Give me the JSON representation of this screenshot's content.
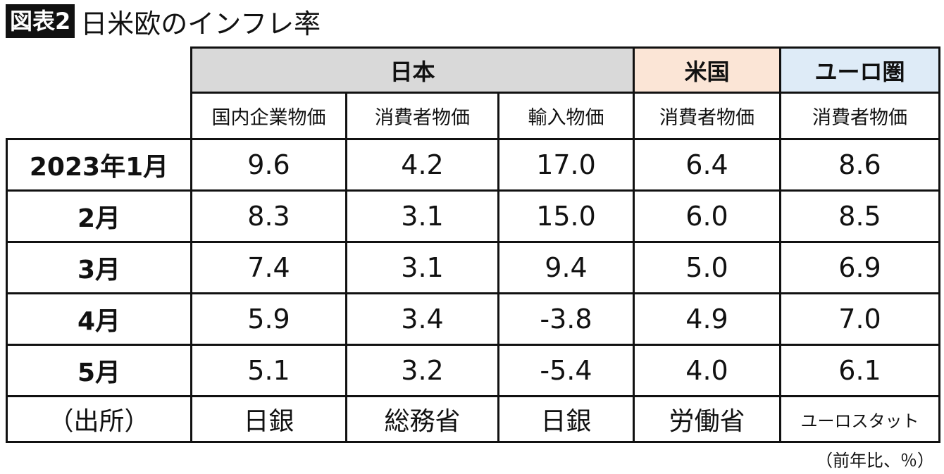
{
  "header": {
    "label": "図表2",
    "title": "日米欧のインフレ率"
  },
  "table": {
    "groups": [
      "日本",
      "米国",
      "ユーロ圏"
    ],
    "columns": [
      "国内企業物価",
      "消費者物価",
      "輸入物価",
      "消費者物価",
      "消費者物価"
    ],
    "rows": [
      [
        "2023年1月",
        "9.6",
        "4.2",
        "17.0",
        "6.4",
        "8.6"
      ],
      [
        "2月",
        "8.3",
        "3.1",
        "15.0",
        "6.0",
        "8.5"
      ],
      [
        "3月",
        "7.4",
        "3.1",
        "9.4",
        "5.0",
        "6.9"
      ],
      [
        "4月",
        "5.9",
        "3.4",
        "-3.8",
        "4.9",
        "7.0"
      ],
      [
        "5月",
        "5.1",
        "3.2",
        "-5.4",
        "4.0",
        "6.1"
      ]
    ],
    "source": [
      "（出所）",
      "日銀",
      "総務省",
      "日銀",
      "労働省",
      "ユーロスタット"
    ]
  },
  "note": "（前年比、％）"
}
